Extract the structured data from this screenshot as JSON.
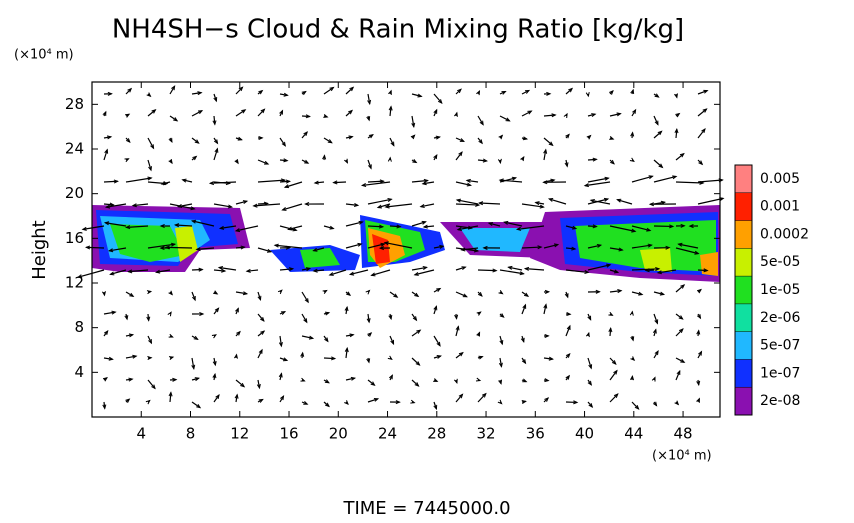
{
  "chart_data": {
    "type": "contour",
    "title": "NH4SH−s Cloud & Rain Mixing Ratio [kg/kg]",
    "y_unit": "(×10⁴ m)",
    "x_unit": "(×10⁴ m)",
    "ylabel": "Height",
    "footer": "TIME  =  7445000.0",
    "xlim": [
      0,
      51
    ],
    "ylim": [
      0,
      30
    ],
    "xticks": [
      4,
      8,
      12,
      16,
      20,
      24,
      28,
      32,
      36,
      40,
      44,
      48
    ],
    "yticks": [
      4,
      8,
      12,
      16,
      20,
      24,
      28
    ],
    "colorbar": {
      "levels": [
        0.005,
        0.001,
        0.0002,
        {
          "value": 5e-05,
          "label": "5e-05"
        },
        {
          "value": 1e-05,
          "label": "1e-05"
        },
        {
          "value": 2e-06,
          "label": "2e-06"
        },
        {
          "value": 5e-07,
          "label": "5e-07"
        },
        {
          "value": 1e-07,
          "label": "1e-07"
        },
        {
          "value": 2e-08,
          "label": "2e-08"
        }
      ],
      "colors": [
        "#ff8080",
        "#ff2000",
        "#ffa000",
        "#c8f000",
        "#20e020",
        "#10e0a0",
        "#20b8ff",
        "#1030ff",
        "#8a10b0"
      ]
    }
  }
}
